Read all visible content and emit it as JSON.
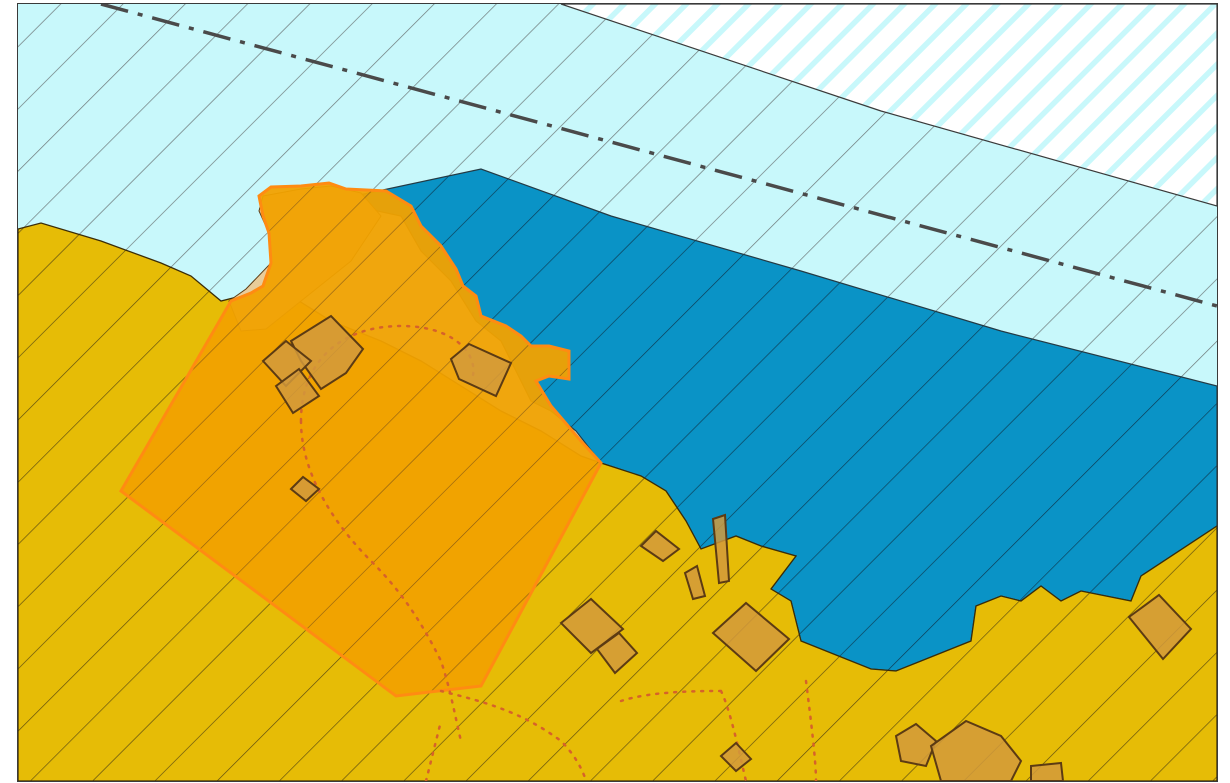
{
  "map": {
    "layers": [
      {
        "name": "zone-light-water",
        "fill": "#c8f8fb",
        "hatch": "#5f6b6b"
      },
      {
        "name": "zone-deep-water",
        "fill": "#0a93c6",
        "hatch": "#0b3750"
      },
      {
        "name": "zone-land",
        "fill": "#e6bc06",
        "hatch": "#5b4a10"
      },
      {
        "name": "highlighted-parcel",
        "fill": "#f5a100",
        "stroke": "#ff8a10"
      },
      {
        "name": "buildings",
        "fill": "#d29a3c",
        "stroke": "#5c3b13"
      },
      {
        "name": "dotted-path",
        "stroke": "#d6622a"
      },
      {
        "name": "boundary-dash-dot-line",
        "stroke": "#4a4a4a"
      }
    ]
  }
}
